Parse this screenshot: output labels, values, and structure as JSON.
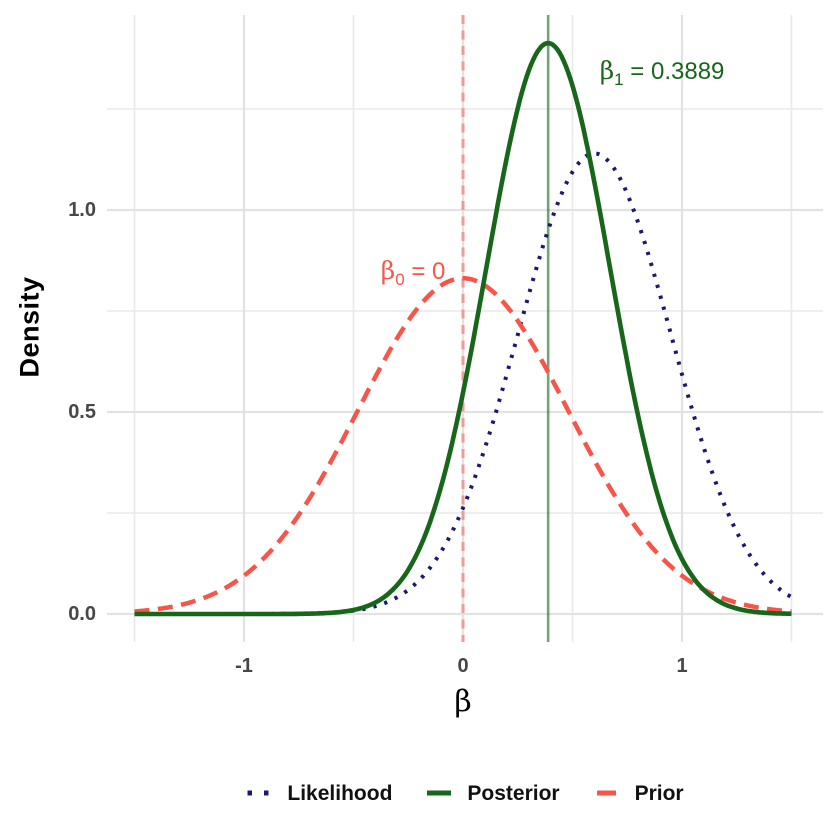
{
  "chart_data": {
    "type": "line",
    "title": "",
    "xlabel": "β",
    "ylabel": "Density",
    "grid": "on",
    "legend_position": "bottom",
    "xlim": [
      -1.65,
      1.65
    ],
    "ylim": [
      -0.07,
      1.48
    ],
    "curve_x_range": [
      -1.5,
      1.5
    ],
    "x_ticks": [
      -1,
      0,
      1
    ],
    "x_tick_labels": [
      "-1",
      "0",
      "1"
    ],
    "y_ticks": [
      0,
      0.5,
      1.0
    ],
    "y_tick_labels": [
      "0.0",
      "0.5",
      "1.0"
    ],
    "x_minor_gridlines": [
      -1.5,
      -0.5,
      0.5,
      1.5
    ],
    "y_minor_gridlines": [
      0.25,
      0.75,
      1.25
    ],
    "series": [
      {
        "name": "Likelihood",
        "distribution": "normal",
        "mean": 0.6,
        "sd": 0.35,
        "peak_density": 1.14,
        "color": "#191970",
        "style": "dotted"
      },
      {
        "name": "Posterior",
        "distribution": "normal",
        "mean": 0.3889,
        "sd": 0.2824,
        "peak_density": 1.413,
        "color": "#17661A",
        "style": "solid"
      },
      {
        "name": "Prior",
        "distribution": "normal",
        "mean": 0,
        "sd": 0.48,
        "peak_density": 0.831,
        "color": "#F8554A",
        "style": "dashed"
      }
    ],
    "vlines": [
      {
        "x": 0,
        "color": "#F8554A",
        "opacity": 0.5,
        "style": "dashed",
        "width": 3.2
      },
      {
        "x": 0.3889,
        "color": "#17661A",
        "opacity": 0.6,
        "style": "solid",
        "width": 2.6
      }
    ],
    "annotations": [
      {
        "base": "β",
        "sub": "0",
        "rest": " = 0",
        "x": -0.228,
        "y": 0.849,
        "color": "#F8554A"
      },
      {
        "base": "β",
        "sub": "1",
        "rest": " = 0.3889",
        "x": 0.909,
        "y": 1.344,
        "color": "#17661A"
      }
    ]
  },
  "style": {
    "background": "#FFFFFF",
    "gridline_major_color": "#E2E2E2",
    "gridline_minor_color": "#E9E9E9",
    "tick_label_color": "#474747",
    "axis_title_color": "#000000",
    "legend_text_color": "#111111"
  }
}
